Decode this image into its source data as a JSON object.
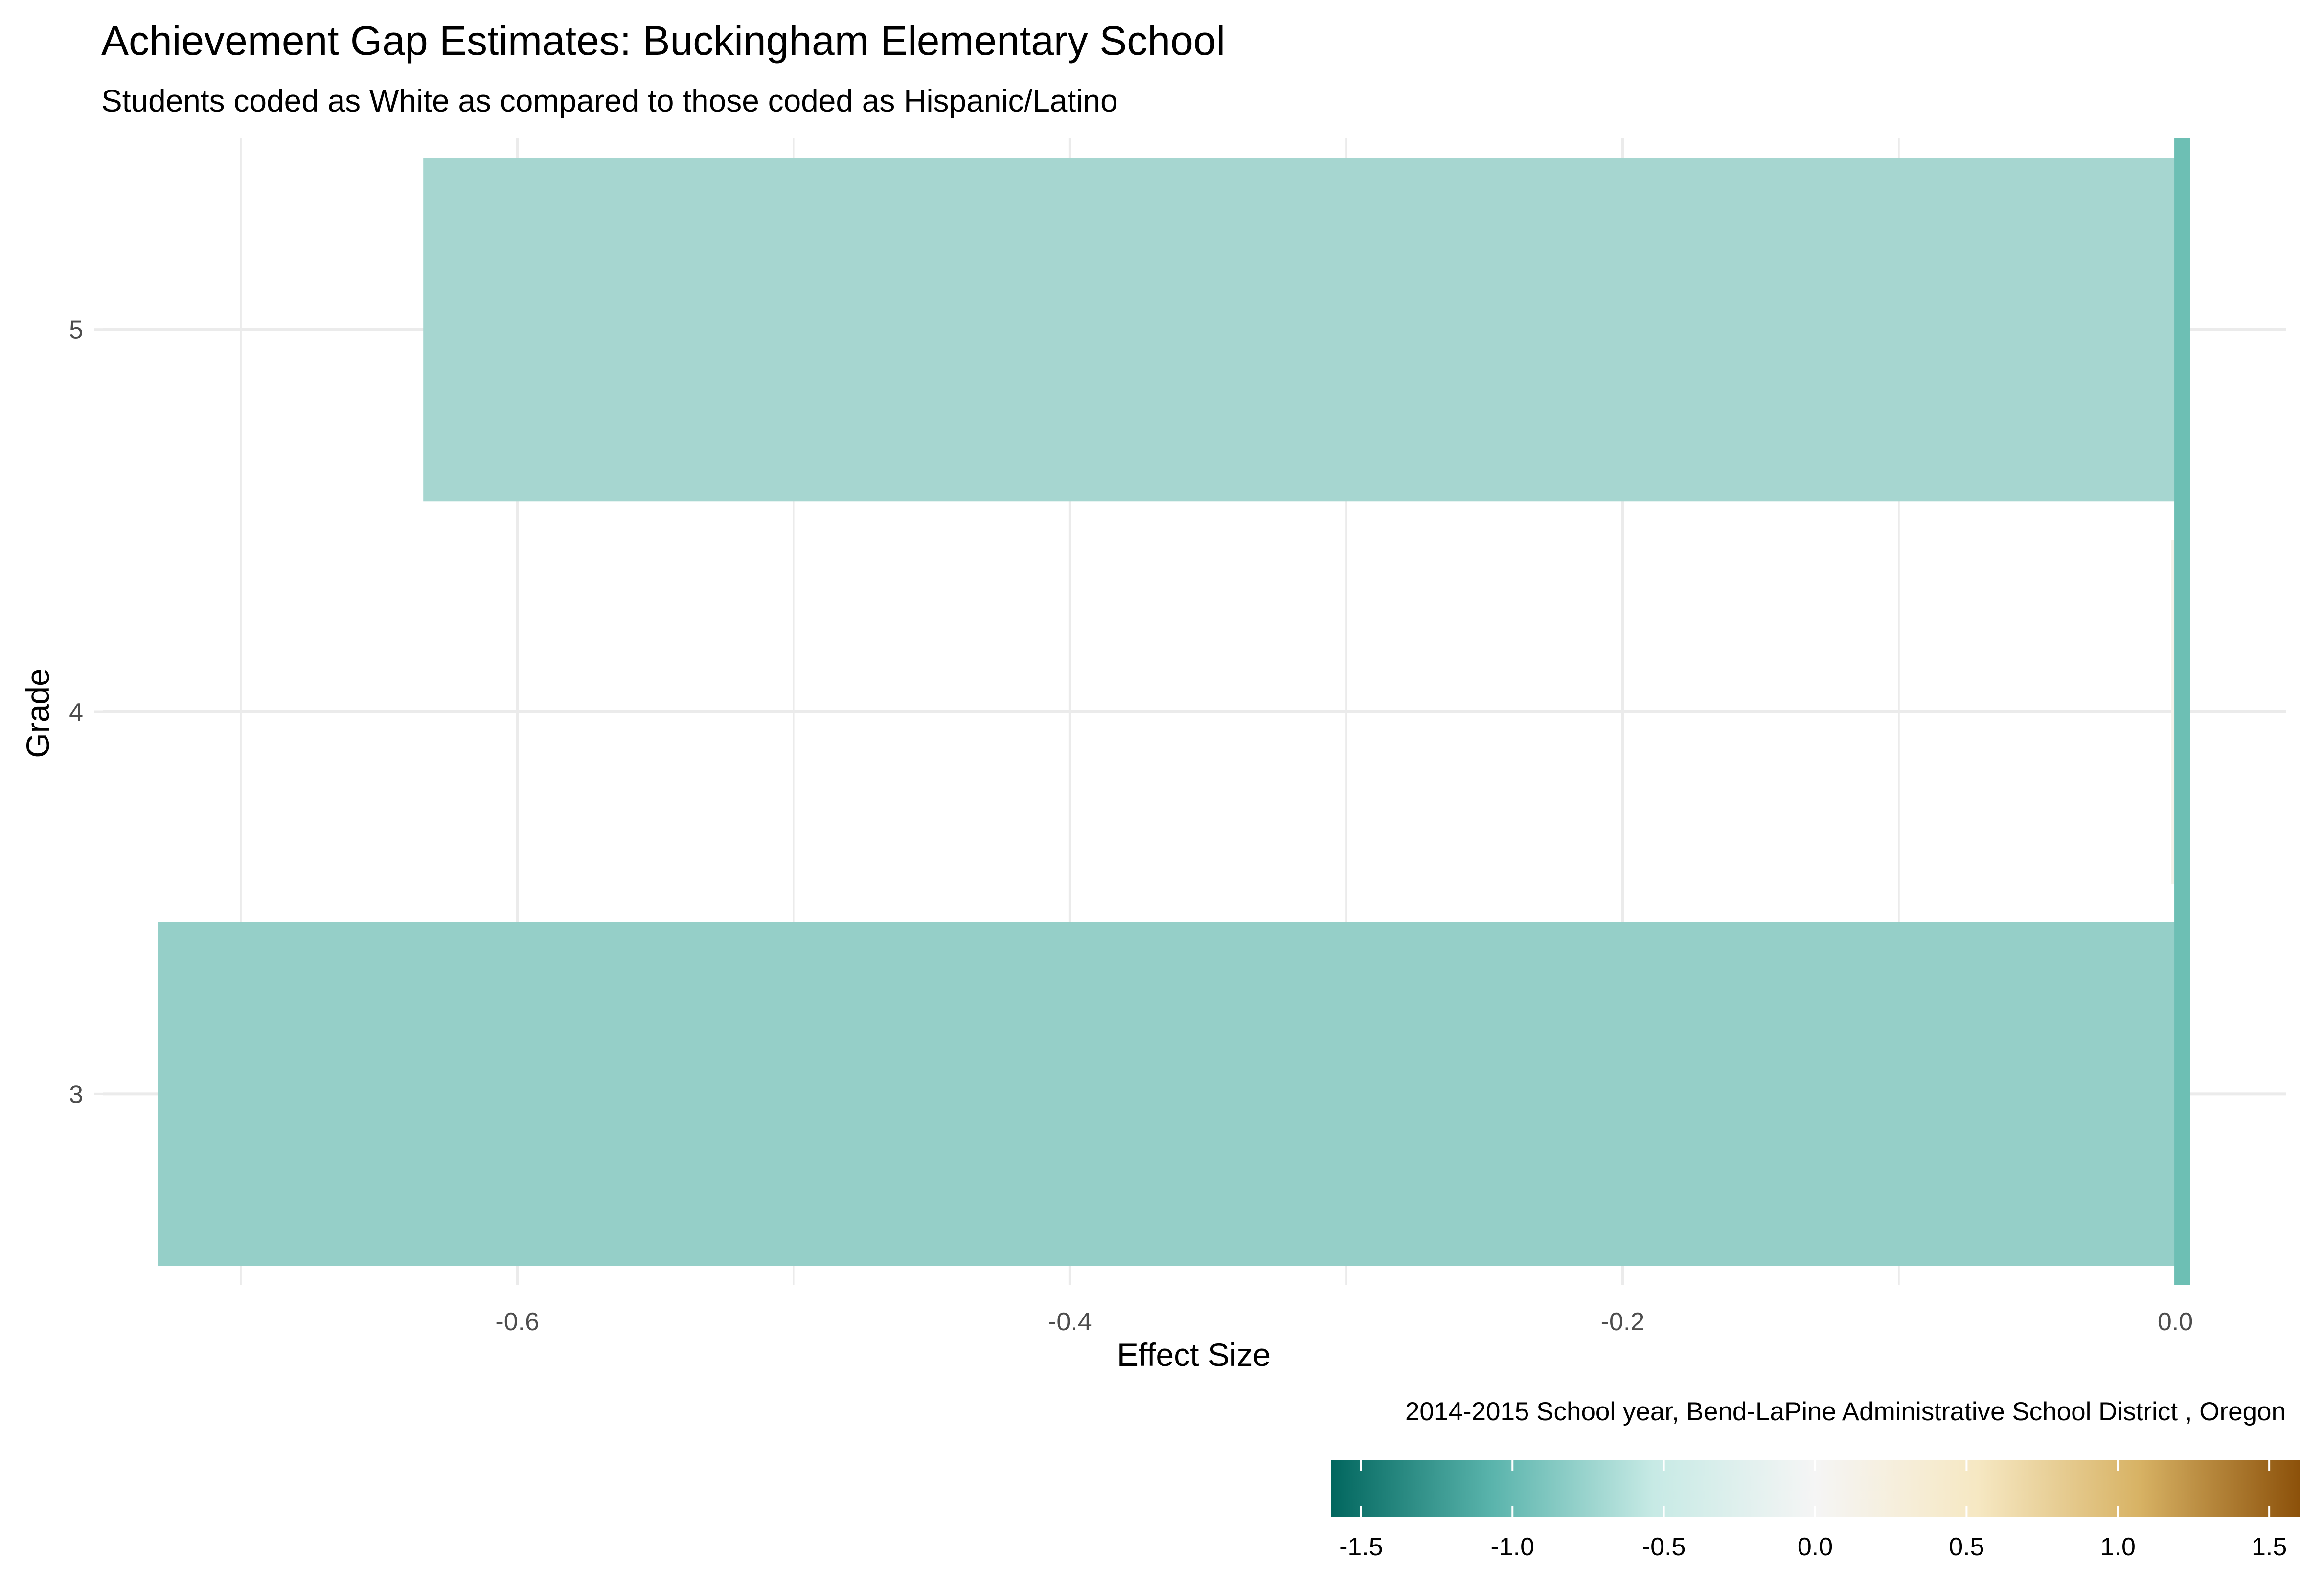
{
  "chart_data": {
    "type": "bar",
    "orientation": "horizontal",
    "title": "Achievement Gap Estimates: Buckingham Elementary School",
    "subtitle": "Students coded as White as compared to those coded as Hispanic/Latino",
    "xlabel": "Effect Size",
    "ylabel": "Grade",
    "caption": "2014-2015 School year,  Bend-LaPine Administrative School District , Oregon",
    "categories": [
      "3",
      "4",
      "5"
    ],
    "values": [
      -0.73,
      0.0,
      -0.634
    ],
    "bar_colors": [
      "#95cfc8",
      "#f4f1e9",
      "#a6d6d0"
    ],
    "xlim": [
      -0.75,
      0.04
    ],
    "x_ticks": [
      "-0.6",
      "-0.4",
      "-0.2",
      "0.0"
    ],
    "x_tick_values": [
      -0.6,
      -0.4,
      -0.2,
      0.0
    ],
    "zero_line_color": "#6dbfb4",
    "grid": true,
    "legend": {
      "type": "colorbar",
      "placement": "bottom-right",
      "range": [
        -1.6,
        1.6
      ],
      "ticks": [
        "-1.5",
        "-1.0",
        "-0.5",
        "0.0",
        "0.5",
        "1.0",
        "1.5"
      ],
      "tick_values": [
        -1.5,
        -1.0,
        -0.5,
        0.0,
        0.5,
        1.0,
        1.5
      ],
      "colors": [
        "#01665e",
        "#5ab4ac",
        "#c7eae5",
        "#f5f5f5",
        "#f6e8c3",
        "#d8b365",
        "#8c510a"
      ]
    }
  }
}
